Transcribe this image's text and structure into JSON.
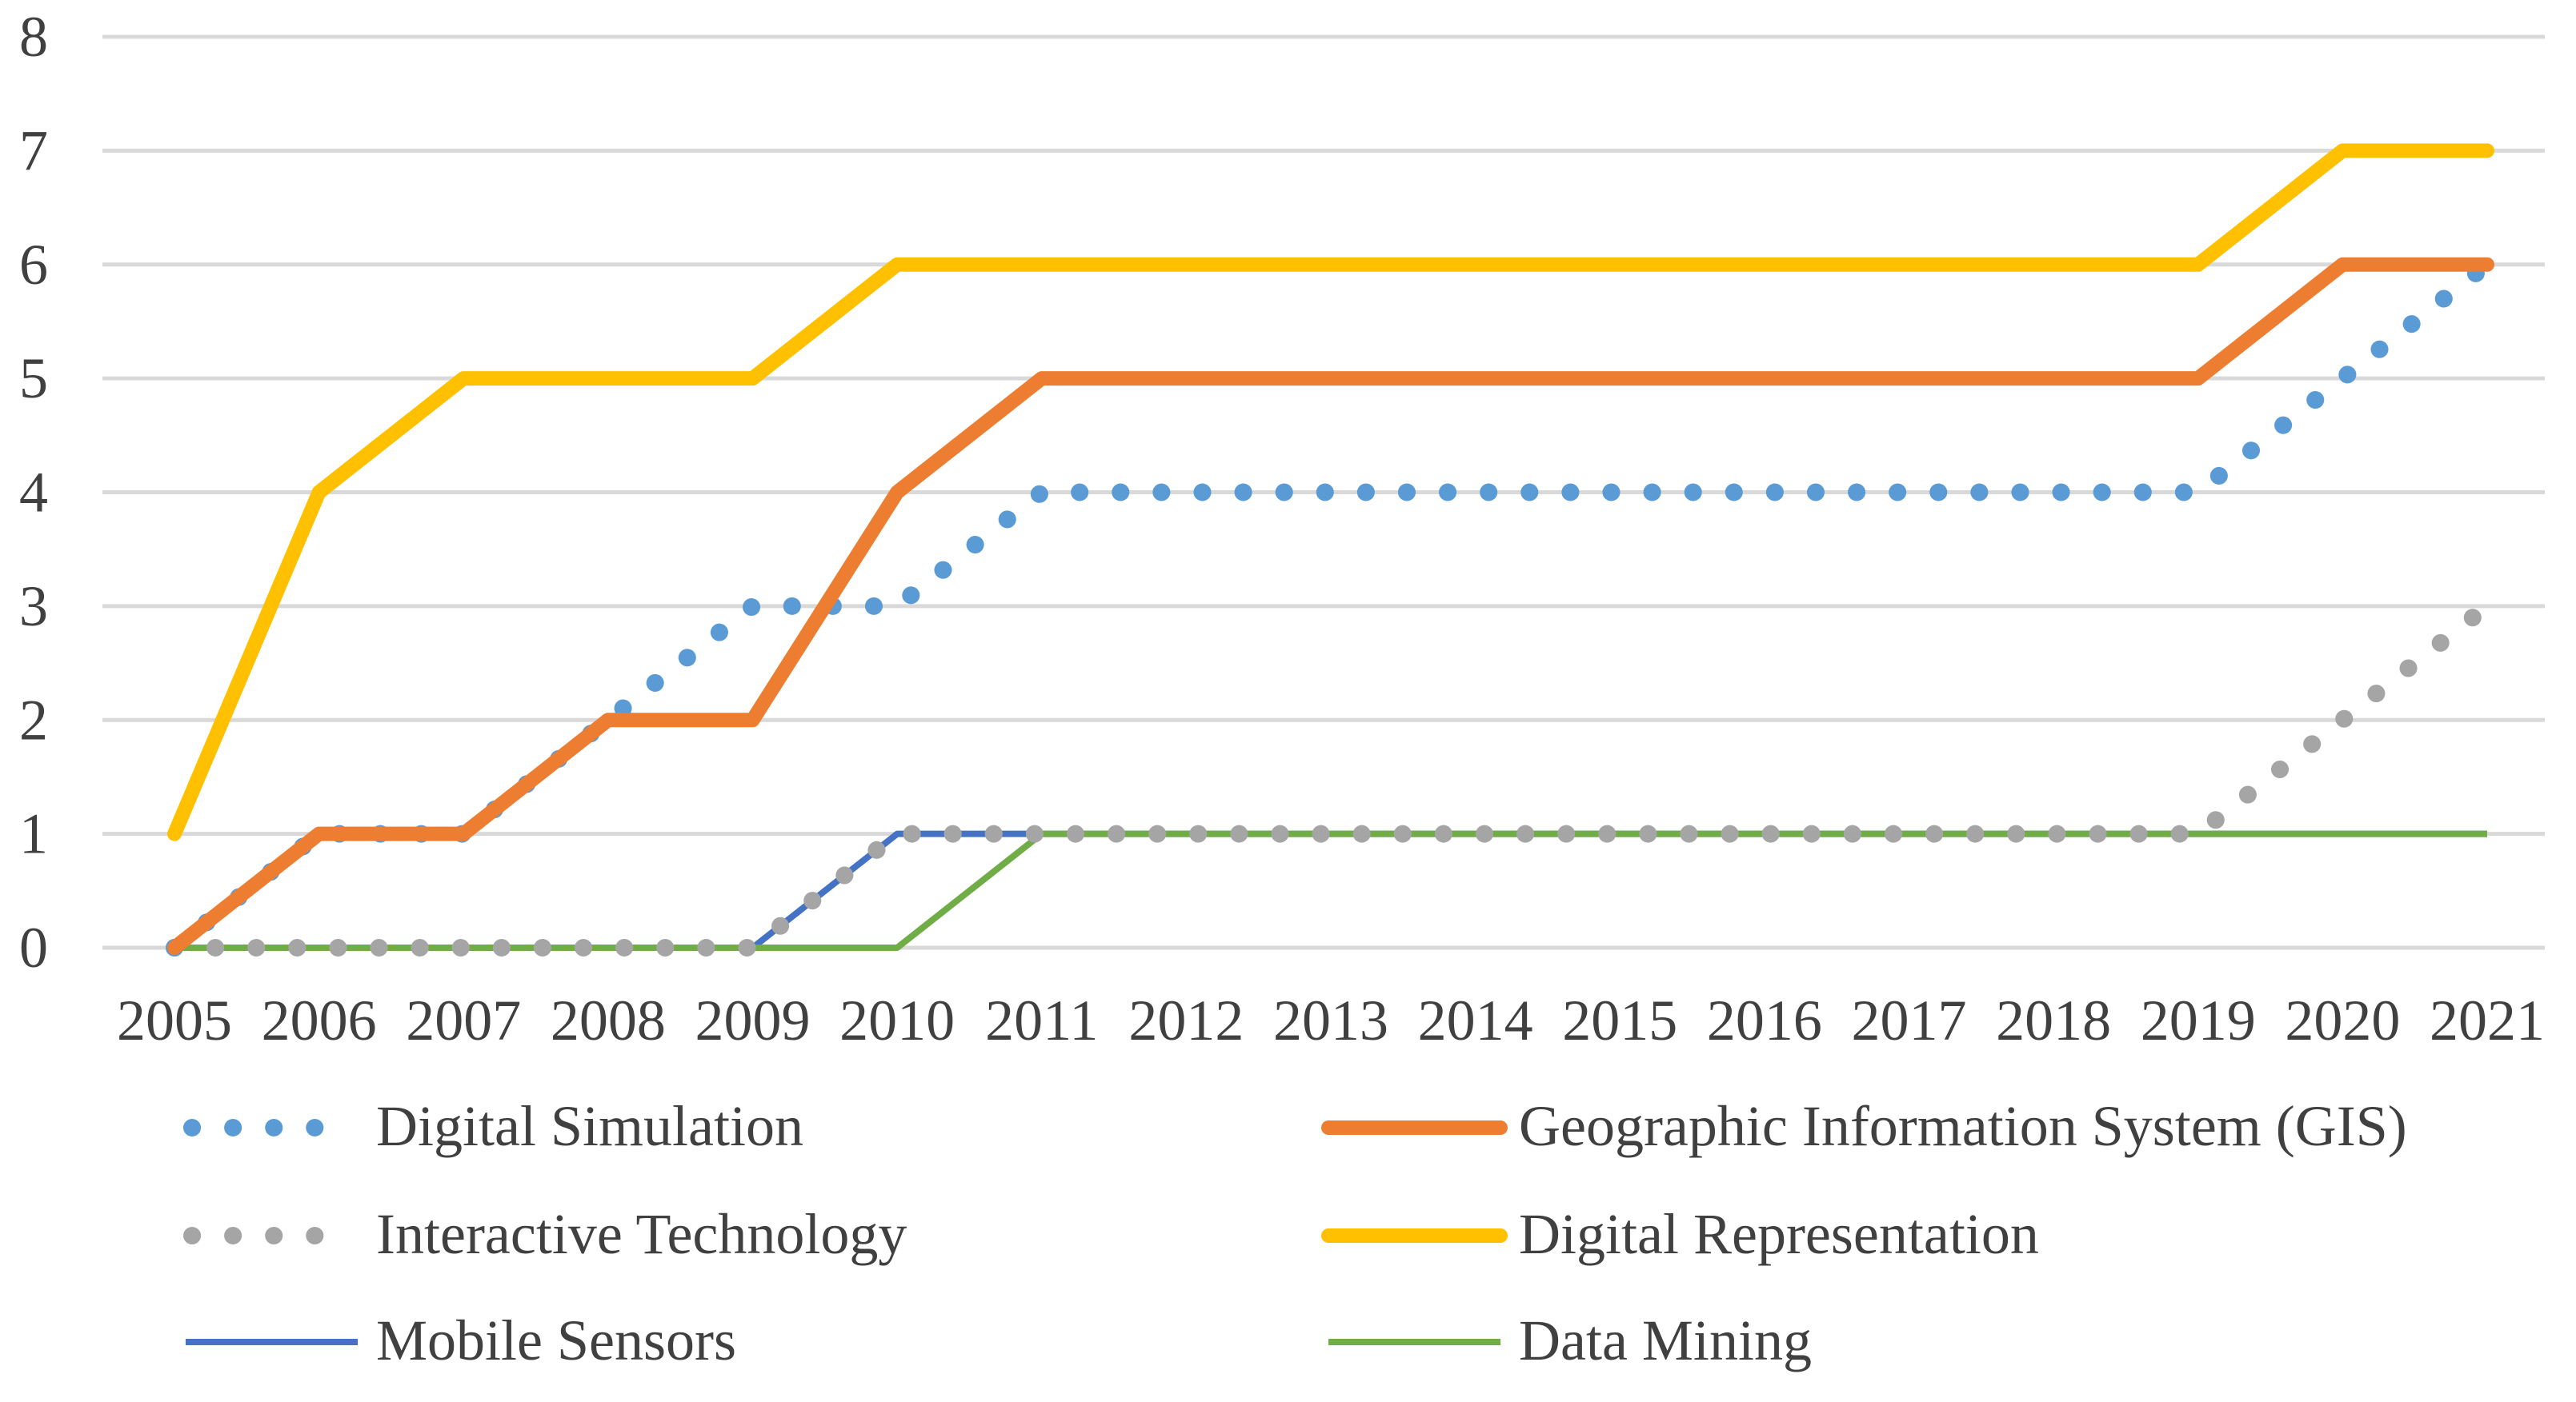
{
  "chart_data": {
    "type": "line",
    "title": "",
    "xlabel": "",
    "ylabel": "",
    "x": [
      "2005",
      "2006",
      "2007",
      "2008",
      "2009",
      "2010",
      "2011",
      "2012",
      "2013",
      "2014",
      "2015",
      "2016",
      "2017",
      "2018",
      "2019",
      "2020",
      "2021"
    ],
    "ylim": [
      0,
      8
    ],
    "yticks": [
      "0",
      "1",
      "2",
      "3",
      "4",
      "5",
      "6",
      "7",
      "8"
    ],
    "grid": true,
    "legend_position": "bottom",
    "series": [
      {
        "name": "Digital Simulation",
        "color": "#5b9bd5",
        "style": "dotted",
        "values": [
          0,
          1,
          1,
          2,
          3,
          3,
          4,
          4,
          4,
          4,
          4,
          4,
          4,
          4,
          4,
          5,
          6
        ]
      },
      {
        "name": "Geographic Information System (GIS)",
        "color": "#ed7d31",
        "style": "thick",
        "values": [
          0,
          1,
          1,
          2,
          2,
          4,
          5,
          5,
          5,
          5,
          5,
          5,
          5,
          5,
          5,
          6,
          6
        ]
      },
      {
        "name": "Interactive Technology",
        "color": "#a5a5a5",
        "style": "dotted",
        "values": [
          0,
          0,
          0,
          0,
          0,
          1,
          1,
          1,
          1,
          1,
          1,
          1,
          1,
          1,
          1,
          2,
          3
        ]
      },
      {
        "name": "Digital Representation",
        "color": "#ffc000",
        "style": "thick",
        "values": [
          1,
          4,
          5,
          5,
          5,
          6,
          6,
          6,
          6,
          6,
          6,
          6,
          6,
          6,
          6,
          7,
          7
        ]
      },
      {
        "name": "Mobile Sensors",
        "color": "#4472c4",
        "style": "thin",
        "values": [
          0,
          0,
          0,
          0,
          0,
          1,
          1,
          1,
          1,
          1,
          1,
          1,
          1,
          1,
          1,
          1,
          1
        ]
      },
      {
        "name": "Data Mining",
        "color": "#70ad47",
        "style": "thin",
        "values": [
          0,
          0,
          0,
          0,
          0,
          0,
          1,
          1,
          1,
          1,
          1,
          1,
          1,
          1,
          1,
          1,
          1
        ]
      }
    ]
  }
}
